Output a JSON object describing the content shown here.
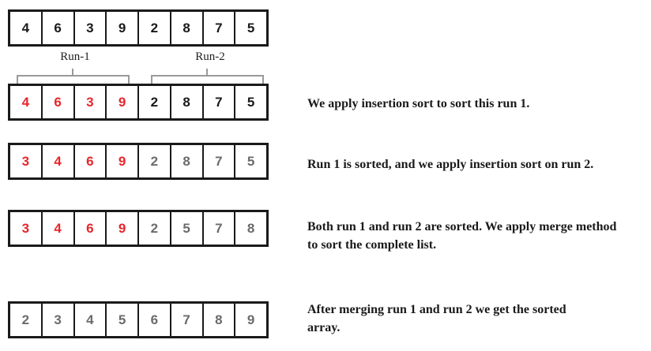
{
  "colors": {
    "red": "#e8262b",
    "black": "#1a1a1a",
    "gray": "#6b6b6b",
    "brace": "#9a9a9a"
  },
  "run_labels": {
    "run1": "Run-1",
    "run2": "Run-2"
  },
  "rows": [
    {
      "cells": [
        {
          "v": "4",
          "c": "black"
        },
        {
          "v": "6",
          "c": "black"
        },
        {
          "v": "3",
          "c": "black"
        },
        {
          "v": "9",
          "c": "black"
        },
        {
          "v": "2",
          "c": "black"
        },
        {
          "v": "8",
          "c": "black"
        },
        {
          "v": "7",
          "c": "black"
        },
        {
          "v": "5",
          "c": "black"
        }
      ],
      "text": ""
    },
    {
      "cells": [
        {
          "v": "4",
          "c": "red"
        },
        {
          "v": "6",
          "c": "red"
        },
        {
          "v": "3",
          "c": "red"
        },
        {
          "v": "9",
          "c": "red"
        },
        {
          "v": "2",
          "c": "black"
        },
        {
          "v": "8",
          "c": "black"
        },
        {
          "v": "7",
          "c": "black"
        },
        {
          "v": "5",
          "c": "black"
        }
      ],
      "text": "We apply insertion sort to sort this run 1."
    },
    {
      "cells": [
        {
          "v": "3",
          "c": "red"
        },
        {
          "v": "4",
          "c": "red"
        },
        {
          "v": "6",
          "c": "red"
        },
        {
          "v": "9",
          "c": "red"
        },
        {
          "v": "2",
          "c": "gray"
        },
        {
          "v": "8",
          "c": "gray"
        },
        {
          "v": "7",
          "c": "gray"
        },
        {
          "v": "5",
          "c": "gray"
        }
      ],
      "text": "Run 1 is sorted, and we apply insertion sort on run 2."
    },
    {
      "cells": [
        {
          "v": "3",
          "c": "red"
        },
        {
          "v": "4",
          "c": "red"
        },
        {
          "v": "6",
          "c": "red"
        },
        {
          "v": "9",
          "c": "red"
        },
        {
          "v": "2",
          "c": "gray"
        },
        {
          "v": "5",
          "c": "gray"
        },
        {
          "v": "7",
          "c": "gray"
        },
        {
          "v": "8",
          "c": "gray"
        }
      ],
      "text": "Both run 1 and run 2 are sorted. We apply merge method to sort the complete list."
    },
    {
      "cells": [
        {
          "v": "2",
          "c": "gray"
        },
        {
          "v": "3",
          "c": "gray"
        },
        {
          "v": "4",
          "c": "gray"
        },
        {
          "v": "5",
          "c": "gray"
        },
        {
          "v": "6",
          "c": "gray"
        },
        {
          "v": "7",
          "c": "gray"
        },
        {
          "v": "8",
          "c": "gray"
        },
        {
          "v": "9",
          "c": "gray"
        }
      ],
      "text": "After merging run 1 and run 2 we get the sorted array."
    }
  ]
}
